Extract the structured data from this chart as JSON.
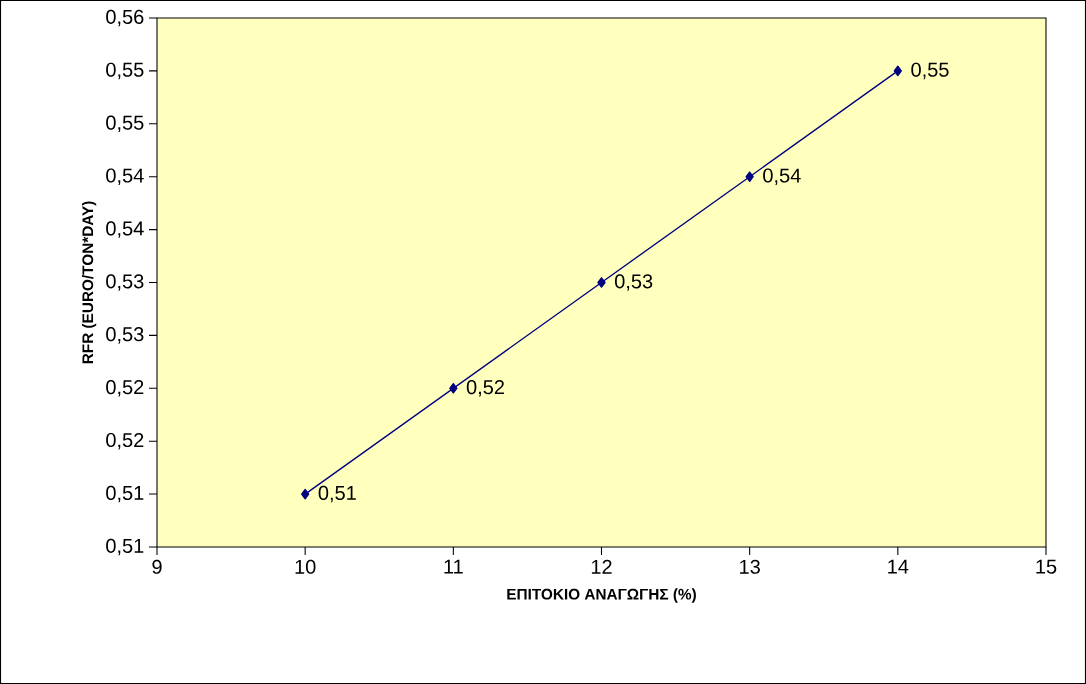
{
  "chart_data": {
    "type": "line",
    "xlabel": "ΕΠΙΤΟΚΙΟ ΑΝΑΓΩΓΗΣ (%)",
    "ylabel": "RFR (EURO/TON*DAY)",
    "x": [
      10,
      11,
      12,
      13,
      14
    ],
    "series": [
      {
        "color": "#000080",
        "values": [
          0.51,
          0.52,
          0.53,
          0.54,
          0.55
        ],
        "value_labels": [
          "0,51",
          "0,52",
          "0,53",
          "0,54",
          "0,55"
        ]
      }
    ],
    "xlim": [
      9,
      15
    ],
    "xticks": [
      9,
      10,
      11,
      12,
      13,
      14,
      15
    ],
    "ylim": [
      0.505,
      0.555
    ],
    "yticks": [
      {
        "value": 0.505,
        "label": "0,51"
      },
      {
        "value": 0.51,
        "label": "0,51"
      },
      {
        "value": 0.515,
        "label": "0,52"
      },
      {
        "value": 0.52,
        "label": "0,52"
      },
      {
        "value": 0.525,
        "label": "0,53"
      },
      {
        "value": 0.53,
        "label": "0,53"
      },
      {
        "value": 0.535,
        "label": "0,54"
      },
      {
        "value": 0.54,
        "label": "0,54"
      },
      {
        "value": 0.545,
        "label": "0,55"
      },
      {
        "value": 0.55,
        "label": "0,55"
      },
      {
        "value": 0.555,
        "label": "0,56"
      }
    ],
    "marker": "diamond",
    "line_style": "solid"
  }
}
